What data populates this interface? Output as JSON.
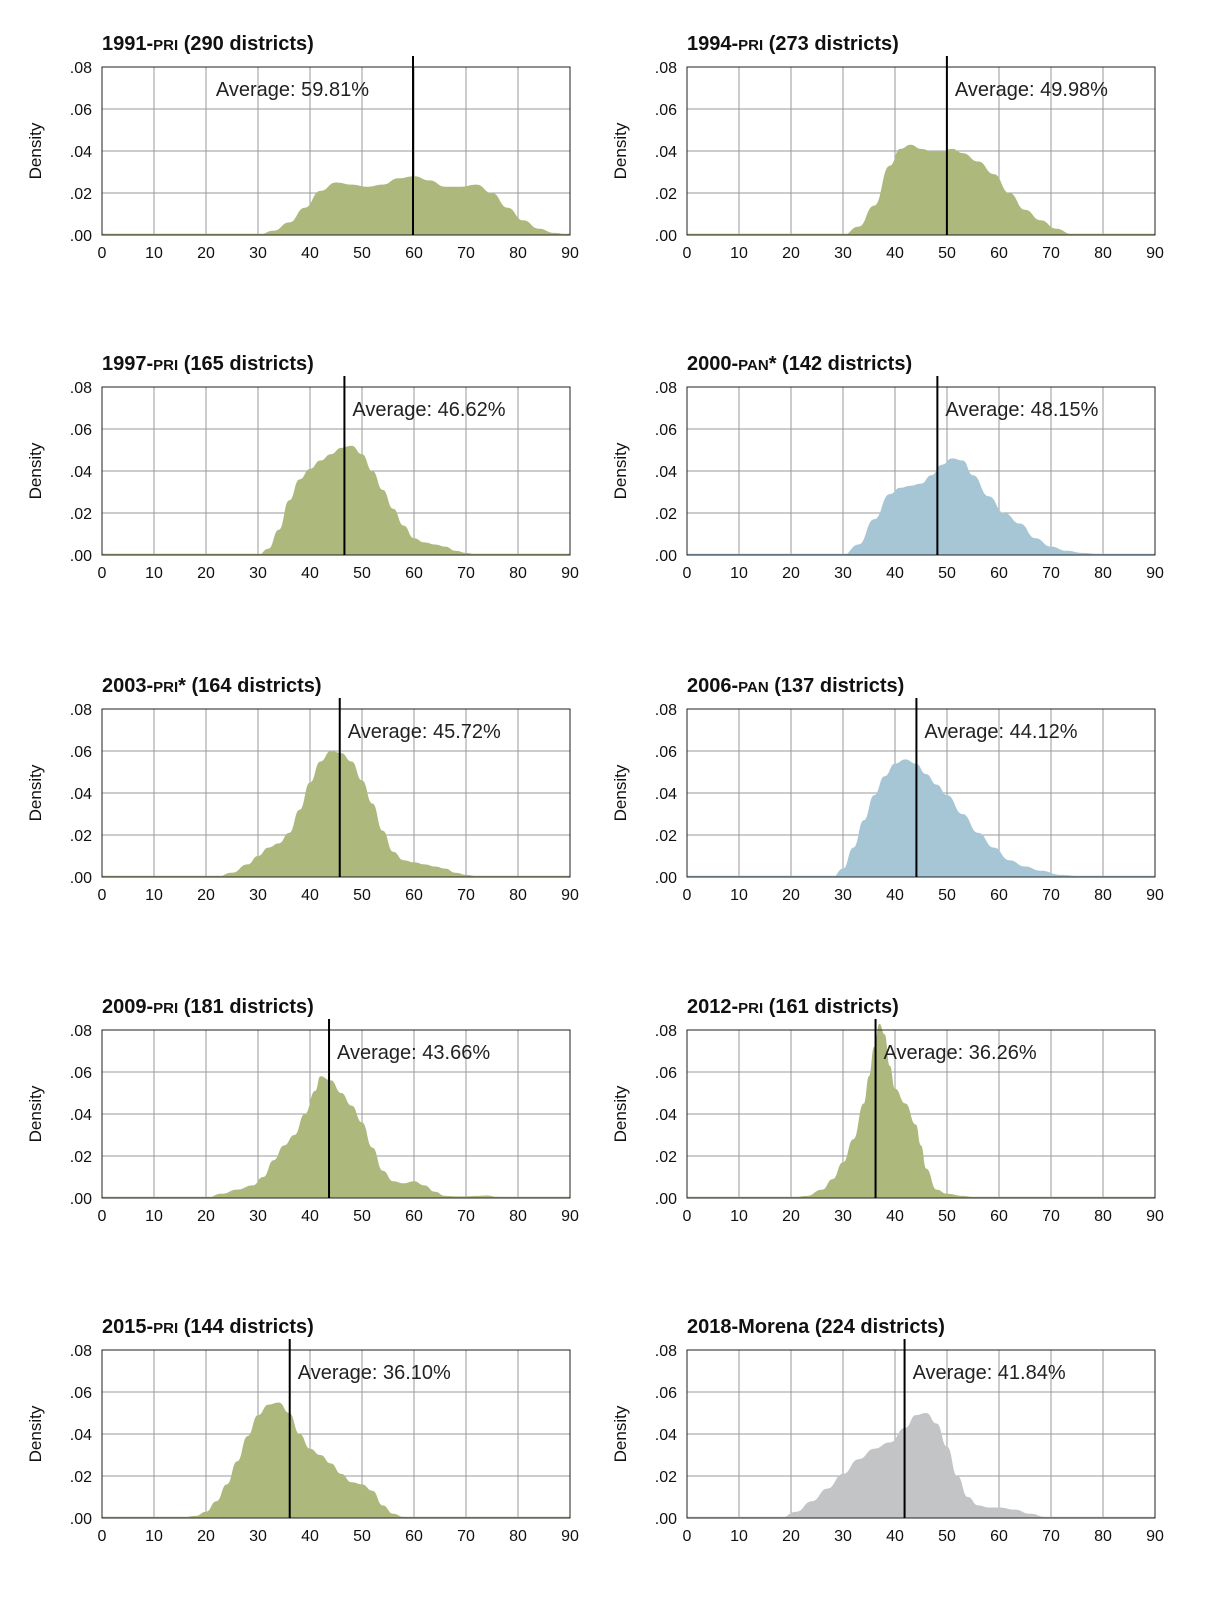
{
  "figure": {
    "y_axis_label": "Density",
    "y_tick_labels": [
      ".00",
      ".02",
      ".04",
      ".06",
      ".08"
    ],
    "y_ticks": [
      0,
      0.02,
      0.04,
      0.06,
      0.08
    ],
    "x_ticks": [
      0,
      10,
      20,
      30,
      40,
      50,
      60,
      70,
      80,
      90
    ],
    "colors": {
      "olive": "#adb87d",
      "blue": "#a6c6d6",
      "gray": "#c3c4c6"
    }
  },
  "chart_data": [
    {
      "type": "area",
      "title_year": "1991-",
      "title_party": "PRI",
      "title_rest": " (290 districts)",
      "average": 59.81,
      "average_label": "Average: 59.81%",
      "color": "olive",
      "xlim": [
        0,
        90
      ],
      "ylim": [
        0,
        0.08
      ],
      "xlabel": "",
      "ylabel": "Density",
      "x": [
        30,
        33,
        36,
        39,
        42,
        45,
        48,
        51,
        54,
        57,
        60,
        63,
        66,
        69,
        72,
        75,
        78,
        81,
        84,
        87,
        90
      ],
      "y": [
        0.0,
        0.002,
        0.006,
        0.013,
        0.021,
        0.025,
        0.024,
        0.023,
        0.024,
        0.027,
        0.028,
        0.026,
        0.023,
        0.023,
        0.024,
        0.02,
        0.013,
        0.007,
        0.003,
        0.001,
        0.0
      ]
    },
    {
      "type": "area",
      "title_year": "1994-",
      "title_party": "PRI",
      "title_rest": " (273 districts)",
      "average": 49.98,
      "average_label": "Average: 49.98%",
      "color": "olive",
      "xlim": [
        0,
        90
      ],
      "ylim": [
        0,
        0.08
      ],
      "xlabel": "",
      "ylabel": "Density",
      "x": [
        30,
        33,
        36,
        39,
        41,
        43,
        45,
        47,
        49,
        51,
        53,
        56,
        59,
        62,
        65,
        68,
        71,
        74,
        77
      ],
      "y": [
        0.0,
        0.004,
        0.014,
        0.033,
        0.041,
        0.043,
        0.041,
        0.04,
        0.04,
        0.041,
        0.039,
        0.035,
        0.029,
        0.02,
        0.012,
        0.007,
        0.003,
        0.0005,
        0.0
      ]
    },
    {
      "type": "area",
      "title_year": "1997-",
      "title_party": "PRI",
      "title_rest": " (165 districts)",
      "average": 46.62,
      "average_label": "Average: 46.62%",
      "color": "olive",
      "xlim": [
        0,
        90
      ],
      "ylim": [
        0,
        0.08
      ],
      "xlabel": "",
      "ylabel": "Density",
      "x": [
        30,
        32,
        34,
        36,
        38,
        40,
        42,
        44,
        46,
        48,
        50,
        52,
        54,
        56,
        58,
        60,
        62,
        64,
        66,
        68,
        70,
        72,
        75
      ],
      "y": [
        0.0,
        0.003,
        0.012,
        0.026,
        0.036,
        0.041,
        0.045,
        0.048,
        0.051,
        0.052,
        0.048,
        0.04,
        0.031,
        0.022,
        0.014,
        0.008,
        0.006,
        0.005,
        0.004,
        0.002,
        0.001,
        0.0003,
        0.0
      ]
    },
    {
      "type": "area",
      "title_year": "2000-",
      "title_party": "PAN",
      "title_rest": "* (142 districts)",
      "average": 48.15,
      "average_label": "Average: 48.15%",
      "color": "blue",
      "xlim": [
        0,
        90
      ],
      "ylim": [
        0,
        0.08
      ],
      "xlabel": "",
      "ylabel": "Density",
      "x": [
        30,
        33,
        36,
        39,
        41,
        43,
        45,
        47,
        49,
        51,
        53,
        55,
        58,
        61,
        64,
        67,
        70,
        73,
        76,
        80,
        85
      ],
      "y": [
        0.0,
        0.005,
        0.017,
        0.029,
        0.032,
        0.033,
        0.034,
        0.038,
        0.043,
        0.046,
        0.045,
        0.038,
        0.028,
        0.02,
        0.015,
        0.008,
        0.004,
        0.002,
        0.001,
        0.0003,
        0.0
      ]
    },
    {
      "type": "area",
      "title_year": "2003-",
      "title_party": "PRI",
      "title_rest": "* (164 districts)",
      "average": 45.72,
      "average_label": "Average: 45.72%",
      "color": "olive",
      "xlim": [
        0,
        90
      ],
      "ylim": [
        0,
        0.08
      ],
      "xlabel": "",
      "ylabel": "Density",
      "x": [
        22,
        25,
        28,
        30,
        32,
        34,
        36,
        38,
        40,
        42,
        44,
        46,
        48,
        50,
        52,
        54,
        56,
        58,
        60,
        62,
        64,
        66,
        68,
        70,
        73
      ],
      "y": [
        0.0,
        0.002,
        0.006,
        0.01,
        0.014,
        0.016,
        0.021,
        0.032,
        0.045,
        0.055,
        0.06,
        0.059,
        0.055,
        0.046,
        0.035,
        0.022,
        0.012,
        0.008,
        0.007,
        0.006,
        0.005,
        0.004,
        0.002,
        0.001,
        0.0
      ]
    },
    {
      "type": "area",
      "title_year": "2006-",
      "title_party": "PAN",
      "title_rest": " (137 districts)",
      "average": 44.12,
      "average_label": "Average: 44.12%",
      "color": "blue",
      "xlim": [
        0,
        90
      ],
      "ylim": [
        0,
        0.08
      ],
      "xlabel": "",
      "ylabel": "Density",
      "x": [
        28,
        30,
        32,
        34,
        36,
        38,
        40,
        42,
        44,
        46,
        48,
        50,
        53,
        56,
        59,
        62,
        65,
        68,
        72,
        76,
        80
      ],
      "y": [
        0.0,
        0.004,
        0.014,
        0.027,
        0.039,
        0.048,
        0.054,
        0.056,
        0.054,
        0.049,
        0.044,
        0.039,
        0.03,
        0.021,
        0.014,
        0.008,
        0.005,
        0.003,
        0.001,
        0.0003,
        0.0
      ]
    },
    {
      "type": "area",
      "title_year": "2009-",
      "title_party": "PRI",
      "title_rest": " (181 districts)",
      "average": 43.66,
      "average_label": "Average: 43.66%",
      "color": "olive",
      "xlim": [
        0,
        90
      ],
      "ylim": [
        0,
        0.08
      ],
      "xlabel": "",
      "ylabel": "Density",
      "x": [
        20,
        23,
        26,
        29,
        31,
        33,
        35,
        37,
        39,
        41,
        42,
        44,
        46,
        48,
        50,
        52,
        54,
        56,
        58,
        60,
        62,
        64,
        66,
        68,
        70,
        72,
        74,
        76,
        78
      ],
      "y": [
        0.0,
        0.002,
        0.004,
        0.006,
        0.01,
        0.018,
        0.025,
        0.03,
        0.04,
        0.051,
        0.058,
        0.056,
        0.05,
        0.044,
        0.036,
        0.024,
        0.013,
        0.008,
        0.007,
        0.008,
        0.006,
        0.003,
        0.001,
        0.0008,
        0.0008,
        0.001,
        0.0012,
        0.0006,
        0.0
      ]
    },
    {
      "type": "area",
      "title_year": "2012-",
      "title_party": "PRI",
      "title_rest": " (161 districts)",
      "average": 36.26,
      "average_label": "Average: 36.26%",
      "color": "olive",
      "xlim": [
        0,
        90
      ],
      "ylim": [
        0,
        0.08
      ],
      "xlabel": "",
      "ylabel": "Density",
      "x": [
        20,
        23,
        26,
        28,
        30,
        32,
        34,
        35,
        36,
        37,
        38,
        39,
        40,
        42,
        44,
        45,
        46,
        48,
        50,
        53,
        56
      ],
      "y": [
        0.0,
        0.001,
        0.004,
        0.009,
        0.017,
        0.028,
        0.045,
        0.058,
        0.072,
        0.083,
        0.078,
        0.063,
        0.052,
        0.045,
        0.035,
        0.025,
        0.014,
        0.004,
        0.002,
        0.001,
        0.0
      ]
    },
    {
      "type": "area",
      "title_year": "2015-",
      "title_party": "PRI",
      "title_rest": " (144 districts)",
      "average": 36.1,
      "average_label": "Average: 36.10%",
      "color": "olive",
      "xlim": [
        0,
        90
      ],
      "ylim": [
        0,
        0.08
      ],
      "xlabel": "",
      "ylabel": "Density",
      "x": [
        15,
        18,
        20,
        22,
        24,
        26,
        28,
        30,
        32,
        34,
        36,
        38,
        40,
        42,
        44,
        46,
        48,
        50,
        52,
        54,
        56,
        58,
        60
      ],
      "y": [
        0.0,
        0.001,
        0.003,
        0.008,
        0.016,
        0.027,
        0.039,
        0.049,
        0.054,
        0.055,
        0.05,
        0.04,
        0.033,
        0.03,
        0.026,
        0.021,
        0.017,
        0.016,
        0.013,
        0.006,
        0.002,
        0.0005,
        0.0
      ]
    },
    {
      "type": "area",
      "title_year": "2018-Morena",
      "title_party": "",
      "title_rest": " (224 districts)",
      "average": 41.84,
      "average_label": "Average: 41.84%",
      "color": "gray",
      "xlim": [
        0,
        90
      ],
      "ylim": [
        0,
        0.08
      ],
      "xlabel": "",
      "ylabel": "Density",
      "x": [
        18,
        21,
        24,
        27,
        30,
        33,
        36,
        39,
        42,
        44,
        46,
        48,
        50,
        52,
        54,
        56,
        58,
        60,
        63,
        66,
        69,
        72,
        75
      ],
      "y": [
        0.0,
        0.003,
        0.008,
        0.014,
        0.021,
        0.028,
        0.033,
        0.036,
        0.043,
        0.049,
        0.05,
        0.045,
        0.034,
        0.02,
        0.01,
        0.006,
        0.005,
        0.005,
        0.004,
        0.002,
        0.0005,
        0.0001,
        0.0
      ]
    }
  ]
}
